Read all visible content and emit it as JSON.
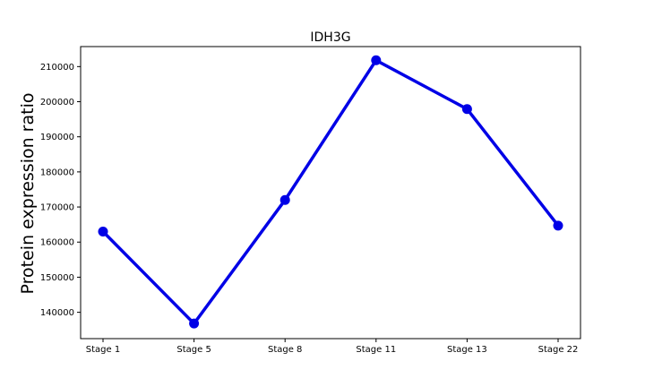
{
  "chart_data": {
    "type": "line",
    "title": "IDH3G",
    "xlabel": "",
    "ylabel": "Protein expression ratio",
    "categories": [
      "Stage 1",
      "Stage 5",
      "Stage 8",
      "Stage 11",
      "Stage 13",
      "Stage 22"
    ],
    "series": [
      {
        "values": [
          163000,
          136800,
          172000,
          211800,
          197900,
          164700
        ]
      }
    ],
    "ylim": [
      132500,
      215700
    ],
    "yticks": [
      140000,
      150000,
      160000,
      170000,
      180000,
      190000,
      200000,
      210000
    ],
    "ytick_labels": [
      "140000",
      "150000",
      "160000",
      "170000",
      "180000",
      "190000",
      "200000",
      "210000"
    ],
    "grid": false,
    "line_color": "#0000e6",
    "marker": "circle"
  }
}
